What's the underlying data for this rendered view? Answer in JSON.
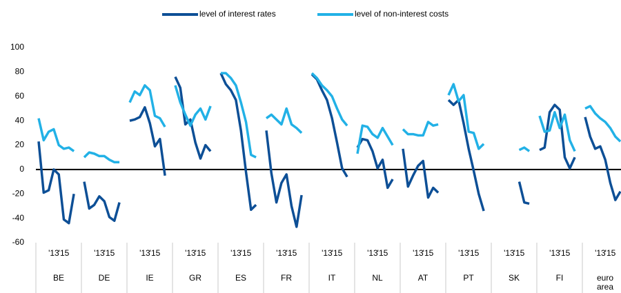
{
  "chart_data": {
    "type": "line",
    "categories": [
      "BE",
      "DE",
      "IE",
      "GR",
      "ES",
      "FR",
      "IT",
      "NL",
      "AT",
      "PT",
      "SK",
      "FI",
      "euro area"
    ],
    "periods": [
      null,
      null,
      null,
      "'13",
      null,
      "'15",
      null,
      null
    ],
    "series": [
      {
        "name": "level of interest rates",
        "color": "#0d4f96",
        "values": [
          [
            23,
            -19,
            -17,
            0,
            -4,
            -41,
            -44,
            -20
          ],
          [
            -10,
            -32,
            -29,
            -22,
            -26,
            -39,
            -42,
            -27
          ],
          [
            40,
            41,
            43,
            51,
            38,
            19,
            25,
            -5
          ],
          [
            76,
            67,
            37,
            41,
            22,
            9,
            20,
            15
          ],
          [
            79,
            70,
            65,
            57,
            32,
            -2,
            -33,
            -29
          ],
          [
            32,
            -3,
            -27,
            -11,
            -4,
            -30,
            -47,
            -21
          ],
          [
            78,
            74,
            65,
            57,
            42,
            22,
            1,
            -6
          ],
          [
            18,
            25,
            24,
            15,
            1,
            8,
            -15,
            -8
          ],
          [
            17,
            -14,
            -5,
            3,
            7,
            -23,
            -15,
            -19
          ],
          [
            57,
            53,
            57,
            38,
            17,
            -1,
            -20,
            -34
          ],
          [
            null,
            null,
            null,
            null,
            null,
            -10,
            -27,
            -28
          ],
          [
            16,
            18,
            47,
            53,
            49,
            10,
            1,
            10
          ],
          [
            43,
            27,
            17,
            19,
            8,
            -11,
            -25,
            -18
          ]
        ]
      },
      {
        "name": "level of non-interest costs",
        "color": "#22b1e6",
        "values": [
          [
            42,
            24,
            31,
            33,
            20,
            17,
            18,
            15
          ],
          [
            10,
            14,
            13,
            11,
            11,
            8,
            6,
            6
          ],
          [
            55,
            64,
            61,
            69,
            65,
            44,
            42,
            35
          ],
          [
            69,
            55,
            45,
            36,
            45,
            50,
            41,
            52
          ],
          [
            79,
            79,
            75,
            69,
            55,
            39,
            12,
            10
          ],
          [
            42,
            45,
            41,
            37,
            50,
            37,
            34,
            30
          ],
          [
            79,
            75,
            69,
            65,
            60,
            50,
            41,
            36
          ],
          [
            13,
            36,
            35,
            29,
            26,
            34,
            27,
            20
          ],
          [
            33,
            29,
            29,
            28,
            28,
            39,
            36,
            37
          ],
          [
            61,
            70,
            56,
            61,
            31,
            30,
            17,
            21
          ],
          [
            null,
            null,
            null,
            null,
            null,
            16,
            18,
            15
          ],
          [
            44,
            31,
            32,
            47,
            34,
            45,
            24,
            15
          ],
          [
            50,
            52,
            46,
            42,
            39,
            34,
            27,
            23
          ]
        ]
      }
    ],
    "ylim": [
      -60,
      100
    ],
    "yticks": [
      -60,
      -40,
      -20,
      0,
      20,
      40,
      60,
      80,
      100
    ],
    "grid": false
  }
}
